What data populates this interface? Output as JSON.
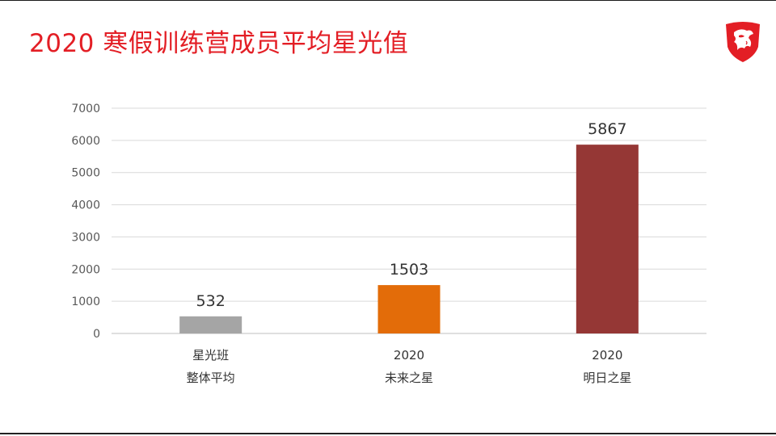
{
  "slide": {
    "title": "2020 寒假训练营成员平均星光值"
  },
  "logo": {
    "icon": "dragon-shield-icon",
    "color": "#e31e25"
  },
  "chart_data": {
    "type": "bar",
    "title": "",
    "xlabel": "",
    "ylabel": "",
    "categories": [
      [
        "星光班",
        "整体平均"
      ],
      [
        "2020",
        "未来之星"
      ],
      [
        "2020",
        "明日之星"
      ]
    ],
    "values": [
      532,
      1503,
      5867
    ],
    "colors": [
      "#a5a5a5",
      "#e36c09",
      "#953735"
    ],
    "ylim": [
      0,
      7000
    ],
    "yticks": [
      0,
      1000,
      2000,
      3000,
      4000,
      5000,
      6000,
      7000
    ],
    "grid": true,
    "legend": "none",
    "data_labels": [
      "532",
      "1503",
      "5867"
    ]
  }
}
